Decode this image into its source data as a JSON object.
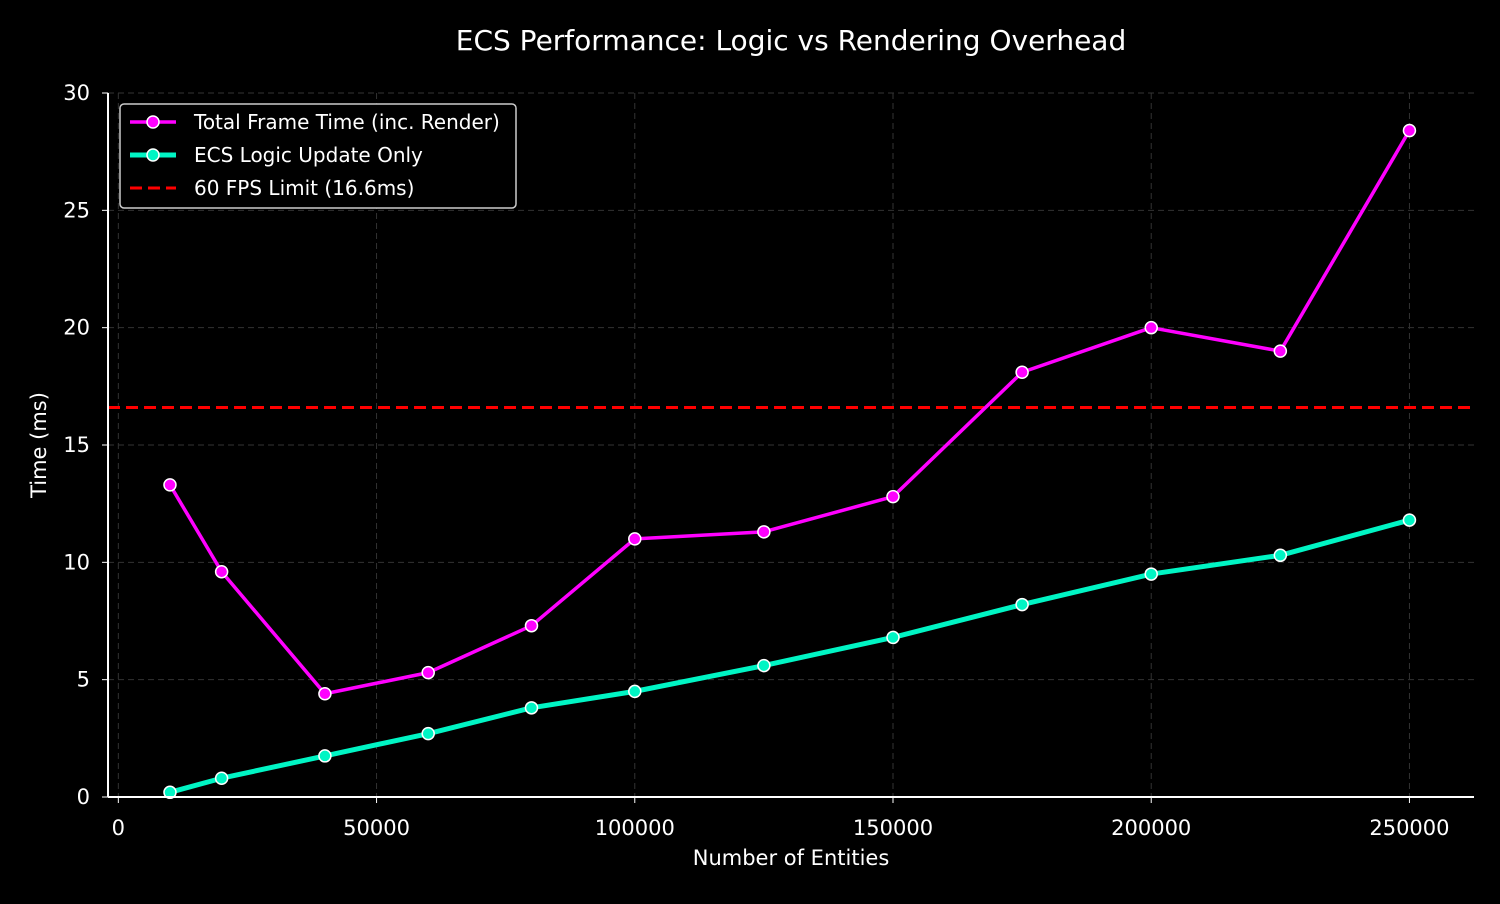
{
  "chart_data": {
    "type": "line",
    "title": "ECS Performance: Logic vs Rendering Overhead",
    "xlabel": "Number of Entities",
    "ylabel": "Time (ms)",
    "xlim": [
      -2000,
      262500
    ],
    "ylim": [
      0,
      30
    ],
    "xticks": [
      0,
      50000,
      100000,
      150000,
      200000,
      250000
    ],
    "yticks": [
      0,
      5,
      10,
      15,
      20,
      25,
      30
    ],
    "grid": true,
    "legend_placement": "top-left",
    "x": [
      10000,
      20000,
      40000,
      60000,
      80000,
      100000,
      125000,
      150000,
      175000,
      200000,
      225000,
      250000
    ],
    "series": [
      {
        "name": "Total Frame Time (inc. Render)",
        "color": "#ff00ff",
        "values": [
          13.3,
          9.6,
          4.4,
          5.3,
          7.3,
          11.0,
          11.3,
          12.8,
          18.1,
          20.0,
          19.0,
          28.4
        ]
      },
      {
        "name": "ECS Logic Update Only",
        "color": "#00f5c4",
        "values": [
          0.2,
          0.8,
          1.75,
          2.7,
          3.8,
          4.5,
          5.6,
          6.8,
          8.2,
          9.5,
          10.3,
          11.8
        ]
      }
    ],
    "hlines": [
      {
        "name": "60 FPS Limit (16.6ms)",
        "y": 16.6,
        "color": "#ff0000",
        "style": "dashed"
      }
    ]
  }
}
